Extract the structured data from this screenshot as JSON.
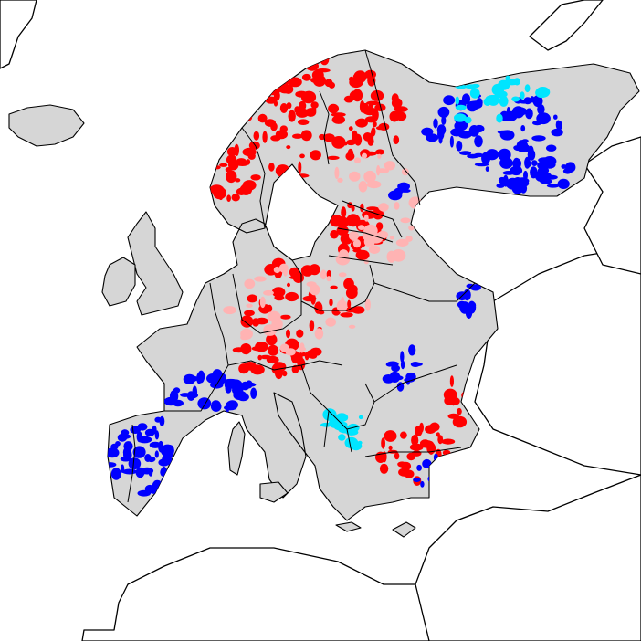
{
  "colors": {
    "land_no_trend": "#d6d6d6",
    "increase_strong": "#ff0000",
    "increase_weak": "#ffb3b3",
    "decrease_strong": "#0000ff",
    "decrease_weak": "#00e5ff",
    "borders": "#000000",
    "background": "#ffffff"
  },
  "map": {
    "region": "Europe",
    "legend": "",
    "title": ""
  }
}
